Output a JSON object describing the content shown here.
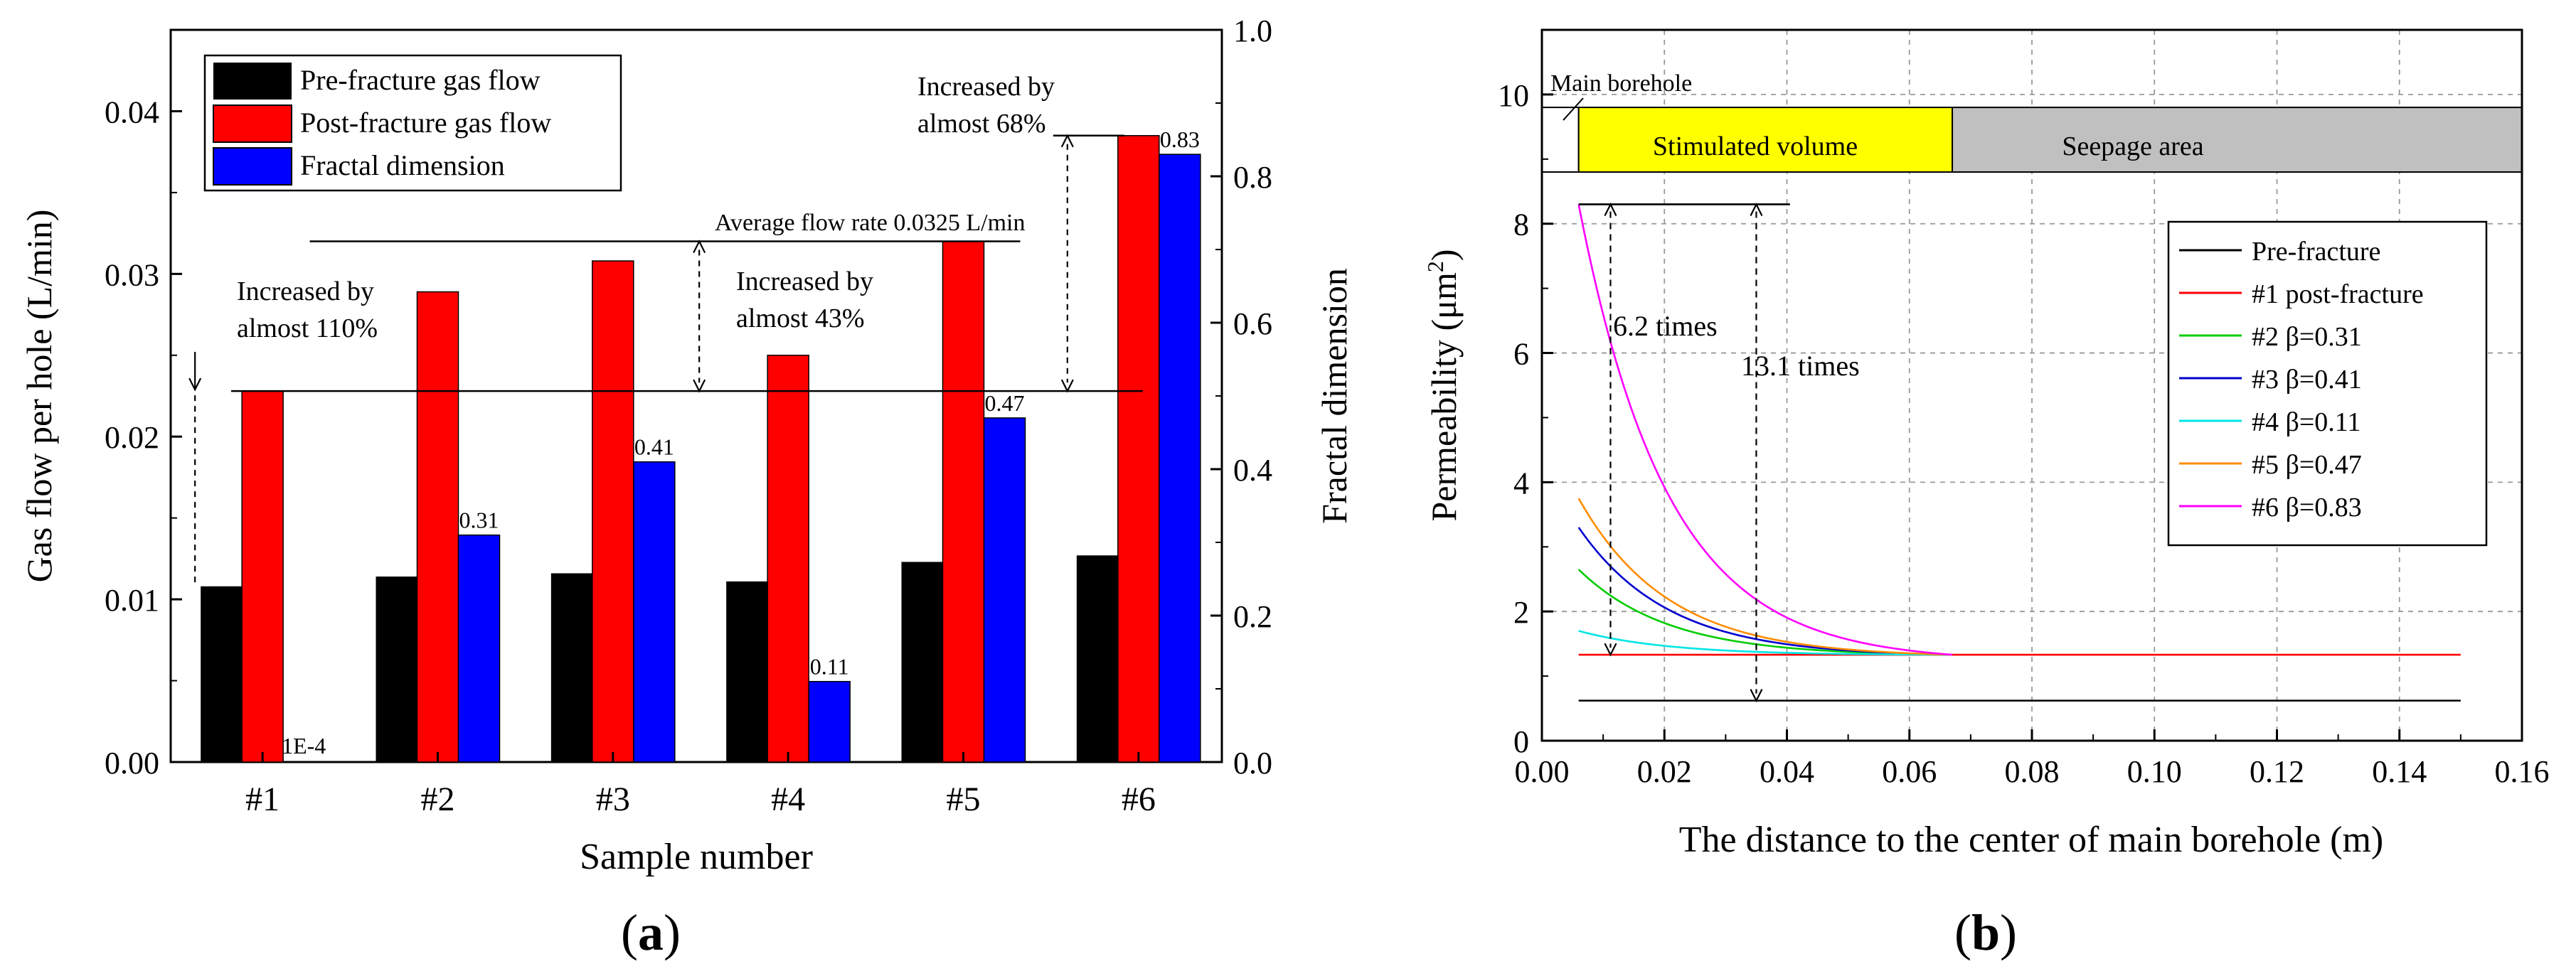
{
  "chart_data": [
    {
      "panel_label": "(a)",
      "panel_letter": "a",
      "type": "bar",
      "xlabel": "Sample number",
      "ylabel": "Gas flow per hole (L/min)",
      "y2label": "Fractal dimension",
      "categories": [
        "#1",
        "#2",
        "#3",
        "#4",
        "#5",
        "#6"
      ],
      "ylim": [
        0,
        0.045
      ],
      "y2lim": [
        0,
        1.0
      ],
      "yticks": [
        "0.00",
        "0.01",
        "0.02",
        "0.03",
        "0.04"
      ],
      "y2ticks": [
        "0.0",
        "0.2",
        "0.4",
        "0.6",
        "0.8",
        "1.0"
      ],
      "series": [
        {
          "name": "Pre-fracture gas flow",
          "axis": "left",
          "color": "#000000",
          "values": [
            0.0108,
            0.0114,
            0.0116,
            0.0111,
            0.0123,
            0.0127
          ]
        },
        {
          "name": "Post-fracture gas flow",
          "axis": "left",
          "color": "#ff0000",
          "values": [
            0.0228,
            0.0289,
            0.0308,
            0.025,
            0.032,
            0.0385
          ]
        },
        {
          "name": "Fractal dimension",
          "axis": "right",
          "color": "#0000ff",
          "values": [
            0.0001,
            0.31,
            0.41,
            0.11,
            0.47,
            0.83
          ]
        }
      ],
      "bar_labels": [
        "1E-4",
        "0.31",
        "0.41",
        "0.11",
        "0.47",
        "0.83"
      ],
      "reference_lines": {
        "baseline_flow": 0.0228,
        "average_flow": 0.032
      },
      "annotations": {
        "average": "Average flow rate 0.0325 L/min",
        "inc1_line1": "Increased by",
        "inc1_line2": "almost 110%",
        "inc2_line1": "Increased by",
        "inc2_line2": "almost 43%",
        "inc3_line1": "Increased by",
        "inc3_line2": "almost 68%"
      },
      "legend_position": "top-left"
    },
    {
      "panel_label": "(b)",
      "panel_letter": "b",
      "type": "line",
      "xlabel": "The distance to the center of main borehole (m)",
      "ylabel_main": "Permeability (μm",
      "ylabel_sup": "2",
      "ylabel_close": ")",
      "xlim": [
        0,
        0.16
      ],
      "ylim": [
        0,
        11
      ],
      "xticks": [
        "0.00",
        "0.02",
        "0.04",
        "0.06",
        "0.08",
        "0.10",
        "0.12",
        "0.14",
        "0.16"
      ],
      "yticks": [
        "0",
        "2",
        "4",
        "6",
        "8",
        "10"
      ],
      "zones": {
        "main_borehole": "Main borehole",
        "stimulated": "Stimulated volume",
        "seepage": "Seepage area",
        "stimulated_end": 0.067,
        "start": 0.006
      },
      "series": [
        {
          "name": "Pre-fracture",
          "color": "#000000",
          "k0": 0.62,
          "k_start": 0.62,
          "x_start": 0.006,
          "x_end": 0.15
        },
        {
          "name": "#1 post-fracture",
          "color": "#ff0000",
          "k0": 1.33,
          "k_start": 1.33,
          "x_start": 0.006,
          "x_end": 0.15
        },
        {
          "name": "#2 β=0.31",
          "color": "#00cc00",
          "k0": 1.33,
          "k_start": 2.65,
          "x_start": 0.006,
          "x_end": 0.067
        },
        {
          "name": "#3 β=0.41",
          "color": "#0000cc",
          "k0": 1.33,
          "k_start": 3.3,
          "x_start": 0.006,
          "x_end": 0.067
        },
        {
          "name": "#4 β=0.11",
          "color": "#00e5e5",
          "k0": 1.33,
          "k_start": 1.7,
          "x_start": 0.006,
          "x_end": 0.067
        },
        {
          "name": "#5 β=0.47",
          "color": "#ff8c00",
          "k0": 1.33,
          "k_start": 3.75,
          "x_start": 0.006,
          "x_end": 0.067
        },
        {
          "name": "#6 β=0.83",
          "color": "#ff00ff",
          "k0": 1.33,
          "k_start": 8.3,
          "x_start": 0.006,
          "x_end": 0.067
        }
      ],
      "annotations": {
        "times_a": "6.2 times",
        "times_b": "13.1 times"
      },
      "legend_position": "right"
    }
  ]
}
